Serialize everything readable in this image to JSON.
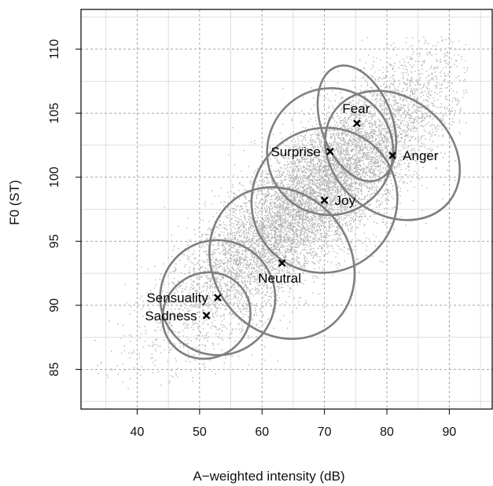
{
  "chart_data": {
    "type": "scatter",
    "title": "",
    "xlabel": "A−weighted intensity (dB)",
    "ylabel": "F0 (ST)",
    "xlim": [
      31,
      97
    ],
    "ylim": [
      81.9,
      113.1
    ],
    "x_ticks": [
      "40",
      "50",
      "60",
      "70",
      "80",
      "90"
    ],
    "y_ticks": [
      "85",
      "90",
      "95",
      "100",
      "105",
      "110"
    ],
    "grid": true,
    "legend": "none",
    "colors": {
      "points": "#b3b3b3",
      "ellipses": "#7f7f7f",
      "major_grid": "#9a9a9a",
      "minor_grid": "#d6d6d6",
      "markers": "#000000"
    },
    "background_point_cloud": {
      "count": 9000,
      "center": [
        68,
        98.5
      ],
      "x_sd": 11,
      "y_sd": 5.2,
      "correlation": 0.85,
      "x_range": [
        33,
        93
      ],
      "y_range": [
        83.5,
        111
      ]
    },
    "series": [
      {
        "label": "Fear",
        "x": 75.2,
        "y": 104.2,
        "ellipse": {
          "rx": 5.7,
          "ry": 4.7,
          "angle_deg": -20
        }
      },
      {
        "label": "Surprise",
        "x": 70.9,
        "y": 102.0,
        "ellipse": {
          "rx": 10.2,
          "ry": 4.9,
          "angle_deg": -66
        }
      },
      {
        "label": "Anger",
        "x": 80.9,
        "y": 101.7,
        "ellipse": {
          "rx": 9.3,
          "ry": 5.7,
          "angle_deg": -50
        }
      },
      {
        "label": "Joy",
        "x": 70.0,
        "y": 98.2,
        "ellipse": {
          "rx": 11.8,
          "ry": 5.6,
          "angle_deg": -40
        }
      },
      {
        "label": "Neutral",
        "x": 63.2,
        "y": 93.3,
        "ellipse": {
          "rx": 11.0,
          "ry": 6.2,
          "angle_deg": -36
        }
      },
      {
        "label": "Sensuality",
        "x": 52.9,
        "y": 90.6,
        "ellipse": {
          "rx": 9.2,
          "ry": 4.5,
          "angle_deg": -37
        }
      },
      {
        "label": "Sadness",
        "x": 51.1,
        "y": 89.2,
        "ellipse": {
          "rx": 7.2,
          "ry": 3.3,
          "angle_deg": -37
        }
      }
    ]
  }
}
